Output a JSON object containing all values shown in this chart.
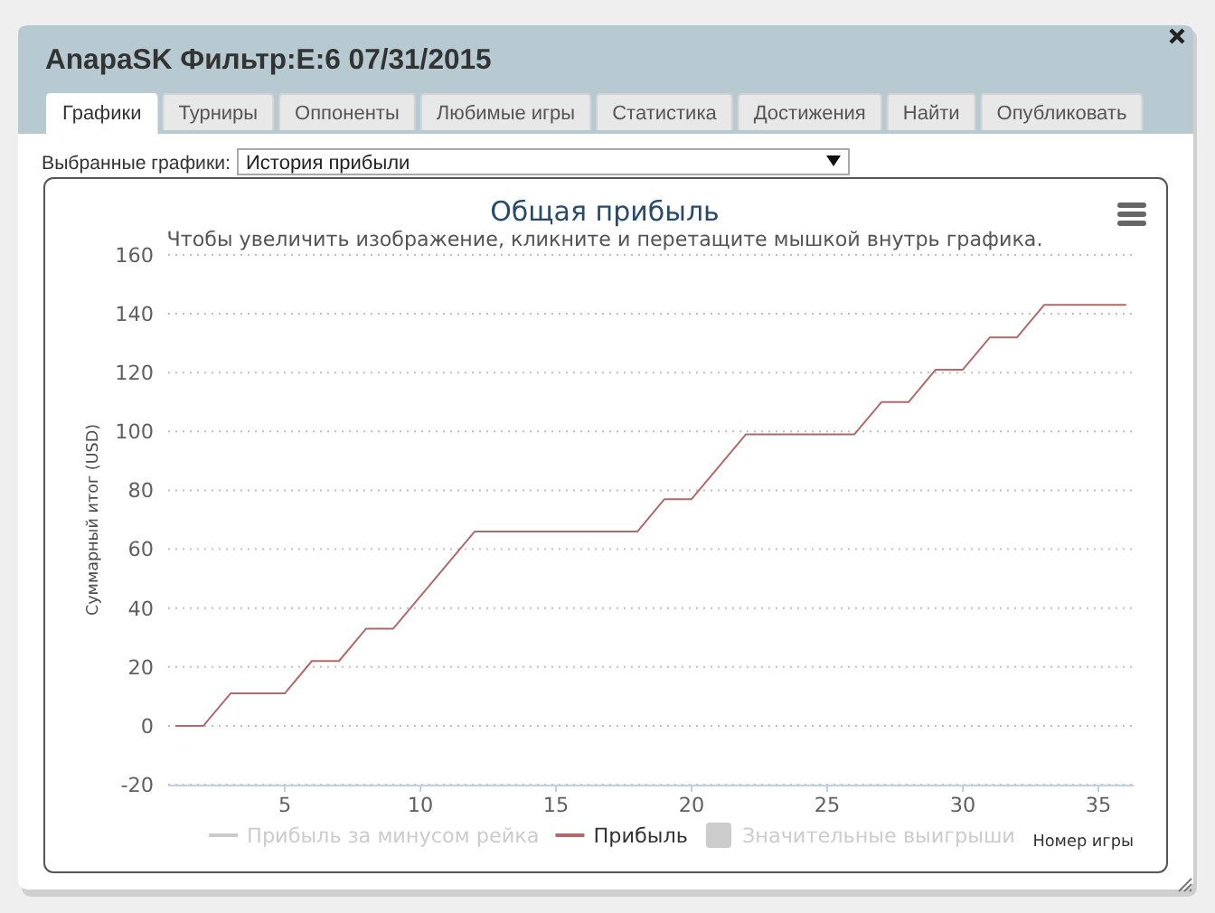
{
  "chart_data": {
    "type": "line",
    "title": "Общая прибыль",
    "subtitle": "Чтобы увеличить изображение, кликните и перетащите мышкой внутрь графика.",
    "xlabel": "Номер игры",
    "ylabel": "Суммарный итог (USD)",
    "annotations": [
      "AnapaSK Фильтр:E:6 07/31/2015",
      "Графики",
      "Турниры",
      "Оппоненты",
      "Любимые игры",
      "Статистика",
      "Достижения",
      "Найти",
      "Опубликовать",
      "Выбранные графики:",
      "История прибыли"
    ],
    "x": [
      1,
      2,
      3,
      4,
      5,
      6,
      7,
      8,
      9,
      10,
      11,
      12,
      13,
      14,
      15,
      16,
      17,
      18,
      19,
      20,
      21,
      22,
      23,
      24,
      25,
      26,
      27,
      28,
      29,
      30,
      31,
      32,
      33,
      34,
      35,
      36
    ],
    "series": [
      {
        "name": "Прибыль за минусом рейка",
        "color": "#cccccc",
        "values": [
          null,
          null,
          null,
          null,
          null,
          null,
          null,
          null,
          null,
          null,
          null,
          null,
          null,
          null,
          null,
          null,
          null,
          null,
          null,
          null,
          null,
          null,
          null,
          null,
          null,
          null,
          null,
          null,
          null,
          null,
          null,
          null,
          null,
          null,
          null,
          null
        ]
      },
      {
        "name": "Прибыль",
        "color": "#b06a6a",
        "values": [
          0,
          0,
          11,
          11,
          11,
          22,
          22,
          33,
          33,
          44,
          55,
          66,
          66,
          66,
          66,
          66,
          66,
          66,
          77,
          77,
          88,
          99,
          99,
          99,
          99,
          99,
          110,
          110,
          121,
          121,
          132,
          132,
          143,
          143,
          143,
          143
        ]
      },
      {
        "name": "Значительные выигрыши",
        "type": "area",
        "color": "#cccccc",
        "values": [
          null,
          null,
          null,
          null,
          null,
          null,
          null,
          null,
          null,
          null,
          null,
          null,
          null,
          null,
          null,
          null,
          null,
          null,
          null,
          null,
          null,
          null,
          null,
          null,
          null,
          null,
          null,
          null,
          null,
          null,
          null,
          null,
          null,
          null,
          null,
          null
        ]
      }
    ],
    "xlim": [
      0.7,
      36.3
    ],
    "xticks": [
      5,
      10,
      15,
      20,
      25,
      30,
      35
    ],
    "ylim": [
      -20,
      160
    ],
    "yticks": [
      -20,
      0,
      20,
      40,
      60,
      80,
      100,
      120,
      140,
      160
    ],
    "grid": "y",
    "legend": "bottom"
  }
}
